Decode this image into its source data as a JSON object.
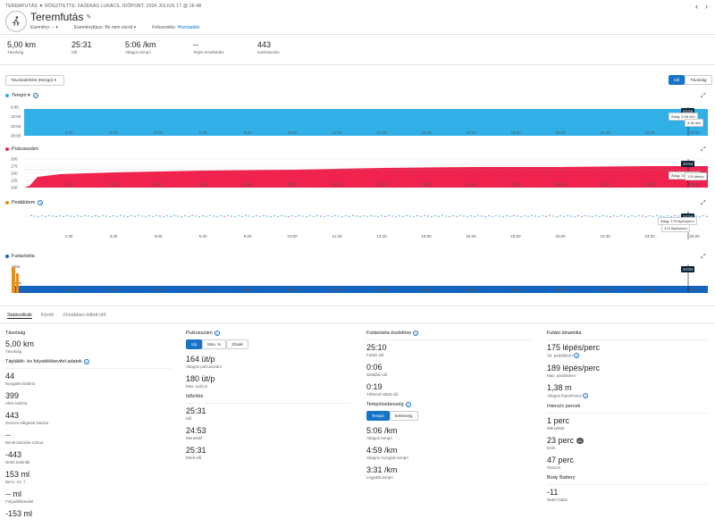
{
  "breadcrumb": "TEREMFUTÁS ▼ RÖGZÍTETTE: FAZEKAS LUKÁCS, IDŐPONT: 2024 JÚLIUS 17 @ 16:48",
  "nav": {
    "prev": "‹",
    "next": "›"
  },
  "title": "Teremfutás",
  "meta": {
    "event_label": "Esemény:",
    "event_value": "--",
    "event_type_label": "Eseménytípus:",
    "event_type_value": "Be nem sorolt",
    "privacy_label": "Felszerelés:",
    "privacy_value": "Hozzáadás"
  },
  "summary": [
    {
      "value": "5,00 km",
      "label": "Távolság"
    },
    {
      "value": "25:31",
      "label": "Idő"
    },
    {
      "value": "5:06 /km",
      "label": "Átlagos tempó"
    },
    {
      "value": "--",
      "label": "Teljes emelkedés"
    },
    {
      "value": "443",
      "label": "Kalóriaszám"
    }
  ],
  "dropdown": "Távolsatérítést (Mozgó) ▾",
  "toggle": {
    "time": "Idő",
    "distance": "Távolság"
  },
  "x_ticks": [
    "1:40",
    "3:20",
    "5:00",
    "6:40",
    "8:20",
    "10:00",
    "11:40",
    "13:20",
    "15:00",
    "16:40",
    "18:20",
    "20:00",
    "21:40",
    "23:20",
    "25:00"
  ],
  "charts": {
    "tempo": {
      "title": "Tempó ▾",
      "color": "#31b0e8",
      "y_ticks": [
        "0:00",
        "10:00",
        "20:00",
        "30:00"
      ],
      "badge": "24:54",
      "tip_avg": "Átlag: 5:06 /km",
      "tip_val": "4:36 /km"
    },
    "hr": {
      "title": "Pulzusszám",
      "color": "#f0224e",
      "y_ticks": [
        "200",
        "175",
        "150",
        "125",
        "100"
      ],
      "badge": "24:54",
      "tip_avg": "Átlag: 164 ütés/p",
      "tip_val": "178 ütés/p"
    },
    "cadence": {
      "title": "Pedálütem",
      "color": "#e88c1e",
      "badge": "24:54",
      "tip_avg": "Átlag: 175 lépés/perc",
      "tip_val": "174 lépés/perc"
    },
    "runwalk": {
      "title": "Futás/séta",
      "color": "#1565c0",
      "y_ticks": [
        "Séta",
        "Futás"
      ],
      "badge": "24:54"
    }
  },
  "tabs": [
    "Statisztikák",
    "Körök",
    "Zónákban töltött idő"
  ],
  "col1": {
    "distance_title": "Távolság",
    "distance_value": "5,00 km",
    "distance_label": "Távolság",
    "nutrition_title": "Táplálék- és folyadékbevitel adatok",
    "items": [
      {
        "value": "44",
        "label": "Nyugalmi kalória"
      },
      {
        "value": "399",
        "label": "Aktív kalória"
      },
      {
        "value": "443",
        "label": "Összes elégetett kalória"
      },
      {
        "value": "--",
        "label": "Bevitt kalóriák száma"
      },
      {
        "value": "-443",
        "label": "Nettó kalóriák"
      },
      {
        "value": "153 ml",
        "label": "Becs. izz. f."
      },
      {
        "value": "-- ml",
        "label": "Folyadékbevitel"
      },
      {
        "value": "-153 ml",
        "label": ""
      }
    ]
  },
  "col2": {
    "hr_title": "Pulzusszám",
    "hr_buttons": [
      "ü/p",
      "Max. %",
      "Zónák"
    ],
    "hr_items": [
      {
        "value": "164 üt/p",
        "label": "Átlagos pulzusszám"
      },
      {
        "value": "180 üt/p",
        "label": "Max. pulzus"
      }
    ],
    "time_title": "Időzítés",
    "time_items": [
      {
        "value": "25:31",
        "label": "Idő"
      },
      {
        "value": "24:53",
        "label": "Menetidő"
      },
      {
        "value": "25:31",
        "label": "Eltelt idő"
      }
    ]
  },
  "col3": {
    "rw_title": "Futás/séta észlelése",
    "rw_items": [
      {
        "value": "25:10",
        "label": "Futási idő"
      },
      {
        "value": "0:06",
        "label": "Sétálási idő"
      },
      {
        "value": "0:19",
        "label": "Tétlenül töltött idő"
      }
    ],
    "pace_title": "Tempó/sebesség",
    "pace_buttons": [
      "Tempó",
      "Sebesség"
    ],
    "pace_items": [
      {
        "value": "5:06 /km",
        "label": "Átlagos tempó"
      },
      {
        "value": "4:59 /km",
        "label": "Átlagos mozgási tempó"
      },
      {
        "value": "3:31 /km",
        "label": "Legjobb tempó"
      }
    ]
  },
  "col4": {
    "dyn_title": "Futási dinamika",
    "dyn_items": [
      {
        "value": "175 lépés/perc",
        "label": "Átl. pedálütem"
      },
      {
        "value": "189 lépés/perc",
        "label": "Max. pedálütem"
      },
      {
        "value": "1,38 m",
        "label": "Átlagos lépéshossz"
      }
    ],
    "int_title": "Intenzív percek",
    "int_items": [
      {
        "value": "1 perc",
        "label": "Mérsékelt"
      },
      {
        "value": "23 perc",
        "label": "Erős",
        "badge": "x2"
      },
      {
        "value": "47 perc",
        "label": "Összes"
      }
    ],
    "bb_title": "Body Battery",
    "bb_items": [
      {
        "value": "-11",
        "label": "Nettó hatás"
      }
    ]
  }
}
